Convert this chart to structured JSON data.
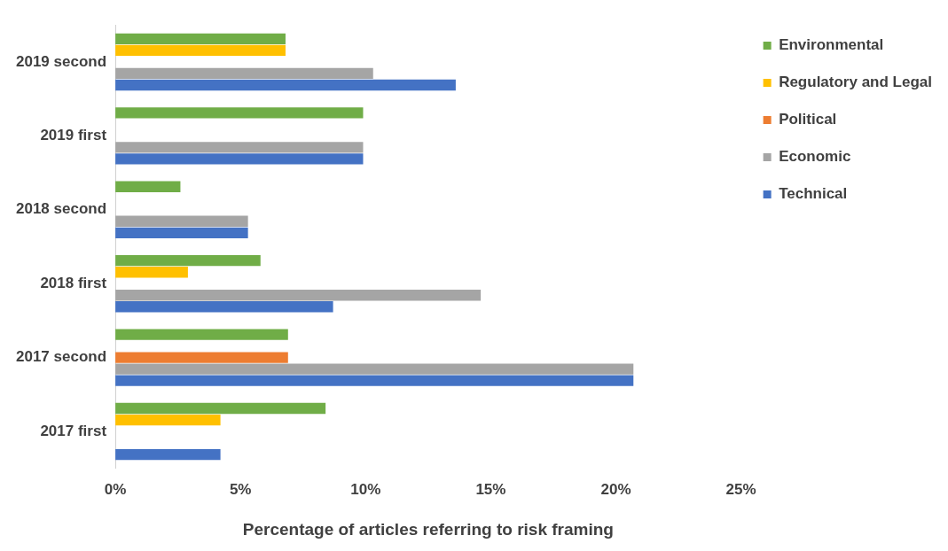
{
  "chart_data": {
    "type": "bar",
    "orientation": "horizontal",
    "xlabel": "Percentage of articles referring to risk framing",
    "categories": [
      "2019 second",
      "2019 first",
      "2018 second",
      "2018 first",
      "2017 second",
      "2017 first"
    ],
    "series": [
      {
        "name": "Environmental",
        "color": "#70ad47",
        "values": [
          6.8,
          9.9,
          2.6,
          5.8,
          6.9,
          8.4
        ]
      },
      {
        "name": "Regulatory and Legal",
        "color": "#ffc000",
        "values": [
          6.8,
          0,
          0,
          2.9,
          0,
          4.2
        ]
      },
      {
        "name": "Political",
        "color": "#ed7d31",
        "values": [
          0,
          0,
          0,
          0,
          6.9,
          0
        ]
      },
      {
        "name": "Economic",
        "color": "#a5a5a5",
        "values": [
          10.3,
          9.9,
          5.3,
          14.6,
          20.7,
          0
        ]
      },
      {
        "name": "Technical",
        "color": "#4472c4",
        "values": [
          13.6,
          9.9,
          5.3,
          8.7,
          20.7,
          4.2
        ]
      }
    ],
    "xlim": [
      0,
      25
    ],
    "xticks": [
      {
        "value": 0,
        "label": "0%"
      },
      {
        "value": 5,
        "label": "5%"
      },
      {
        "value": 10,
        "label": "10%"
      },
      {
        "value": 15,
        "label": "15%"
      },
      {
        "value": 20,
        "label": "20%"
      },
      {
        "value": 25,
        "label": "25%"
      }
    ],
    "grid": false,
    "legend": "right"
  }
}
